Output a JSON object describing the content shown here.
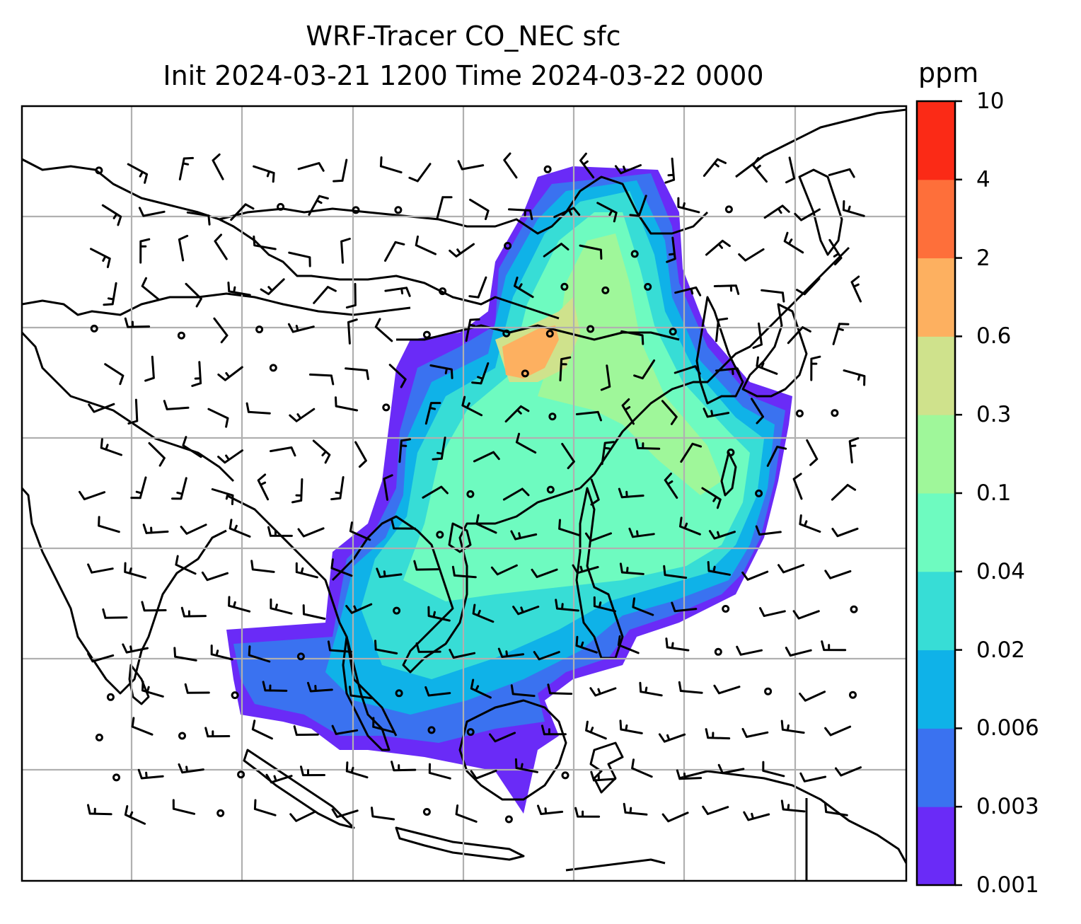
{
  "title": {
    "line1": "WRF-Tracer CO_NEC sfc",
    "line2": "Init 2024-03-21 1200 Time 2024-03-22 0000"
  },
  "colorbar": {
    "unit": "ppm",
    "levels": [
      "0.001",
      "0.003",
      "0.006",
      "0.02",
      "0.04",
      "0.1",
      "0.3",
      "0.6",
      "2",
      "4",
      "10"
    ],
    "colors": [
      "#6a2bf7",
      "#3a72f0",
      "#0fb2e8",
      "#37ddd6",
      "#6efbc0",
      "#9ff79a",
      "#cfe28c",
      "#fdb060",
      "#fe6f3a",
      "#fb2a16"
    ]
  },
  "map": {
    "gridlines": true,
    "features": [
      "coastlines",
      "country borders",
      "tracer concentration contours",
      "wind barbs"
    ]
  }
}
